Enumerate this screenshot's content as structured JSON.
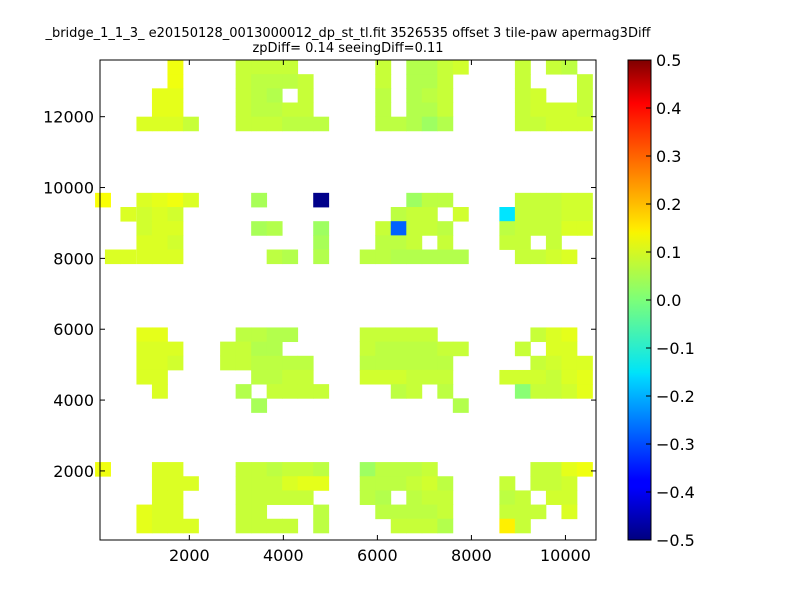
{
  "chart_data": {
    "type": "heatmap",
    "title": "_bridge_1_1_3_ e20150128_0013000012_dp_st_tl.fit 3526535 offset 3 tile-paw apermag3Diff",
    "subtitle": "zpDiff= 0.14 seeingDiff=0.11",
    "xlabel": "",
    "ylabel": "",
    "xlim": [
      100,
      10650
    ],
    "ylim": [
      50,
      13600
    ],
    "xticks": [
      "2000",
      "4000",
      "6000",
      "8000",
      "10000"
    ],
    "yticks": [
      "2000",
      "4000",
      "6000",
      "8000",
      "10000",
      "12000"
    ],
    "cell_size": [
      330,
      400
    ],
    "colorbar": {
      "colormap": "jet",
      "range": [
        -0.5,
        0.5
      ],
      "ticks": [
        "0.5",
        "0.4",
        "0.3",
        "0.2",
        "0.1",
        "0.0",
        "−0.1",
        "−0.2",
        "−0.3",
        "−0.4",
        "−0.5"
      ]
    },
    "cells": [
      [
        1700,
        13400,
        0.11
      ],
      [
        3150,
        13400,
        0.07
      ],
      [
        3480,
        13400,
        0.07
      ],
      [
        3810,
        13400,
        0.07
      ],
      [
        4140,
        13400,
        0.07
      ],
      [
        6120,
        13400,
        0.07
      ],
      [
        6780,
        13400,
        0.05
      ],
      [
        7110,
        13400,
        0.05
      ],
      [
        7440,
        13400,
        0.07
      ],
      [
        7770,
        13400,
        0.08
      ],
      [
        9090,
        13400,
        0.07
      ],
      [
        9750,
        13400,
        0.07
      ],
      [
        10080,
        13400,
        0.06
      ],
      [
        1700,
        13000,
        0.11
      ],
      [
        3150,
        13000,
        0.07
      ],
      [
        3480,
        13000,
        0.06
      ],
      [
        3810,
        13000,
        0.06
      ],
      [
        4140,
        13000,
        0.06
      ],
      [
        4470,
        13000,
        0.07
      ],
      [
        6120,
        13000,
        0.07
      ],
      [
        6780,
        13000,
        0.05
      ],
      [
        7110,
        13000,
        0.05
      ],
      [
        7440,
        13000,
        0.07
      ],
      [
        9090,
        13000,
        0.07
      ],
      [
        10410,
        13000,
        0.07
      ],
      [
        1370,
        12600,
        0.1
      ],
      [
        1700,
        12600,
        0.1
      ],
      [
        3150,
        12600,
        0.07
      ],
      [
        3480,
        12600,
        0.06
      ],
      [
        3810,
        12600,
        0.05
      ],
      [
        4470,
        12600,
        0.07
      ],
      [
        6120,
        12600,
        0.06
      ],
      [
        6780,
        12600,
        0.05
      ],
      [
        7110,
        12600,
        0.06
      ],
      [
        7440,
        12600,
        0.07
      ],
      [
        9090,
        12600,
        0.07
      ],
      [
        9420,
        12600,
        0.08
      ],
      [
        10410,
        12600,
        0.07
      ],
      [
        1370,
        12200,
        0.1
      ],
      [
        1700,
        12200,
        0.1
      ],
      [
        3150,
        12200,
        0.07
      ],
      [
        3480,
        12200,
        0.06
      ],
      [
        3810,
        12200,
        0.06
      ],
      [
        4140,
        12200,
        0.07
      ],
      [
        4470,
        12200,
        0.07
      ],
      [
        6120,
        12200,
        0.06
      ],
      [
        6780,
        12200,
        0.05
      ],
      [
        7110,
        12200,
        0.05
      ],
      [
        7440,
        12200,
        0.07
      ],
      [
        9090,
        12200,
        0.07
      ],
      [
        9420,
        12200,
        0.08
      ],
      [
        9750,
        12200,
        0.08
      ],
      [
        10080,
        12200,
        0.08
      ],
      [
        10410,
        12200,
        0.07
      ],
      [
        1040,
        11800,
        0.09
      ],
      [
        1370,
        11800,
        0.09
      ],
      [
        1700,
        11800,
        0.09
      ],
      [
        2030,
        11800,
        0.07
      ],
      [
        3150,
        11800,
        0.07
      ],
      [
        3480,
        11800,
        0.07
      ],
      [
        3810,
        11800,
        0.07
      ],
      [
        4140,
        11800,
        0.06
      ],
      [
        4470,
        11800,
        0.06
      ],
      [
        4800,
        11800,
        0.06
      ],
      [
        6120,
        11800,
        0.06
      ],
      [
        6450,
        11800,
        0.06
      ],
      [
        6780,
        11800,
        0.05
      ],
      [
        7110,
        11800,
        0.03
      ],
      [
        7440,
        11800,
        0.05
      ],
      [
        9090,
        11800,
        0.07
      ],
      [
        9420,
        11800,
        0.07
      ],
      [
        9750,
        11800,
        0.08
      ],
      [
        10080,
        11800,
        0.08
      ],
      [
        10410,
        11800,
        0.08
      ],
      [
        160,
        9650,
        0.12
      ],
      [
        1040,
        9650,
        0.09
      ],
      [
        1370,
        9650,
        0.1
      ],
      [
        1700,
        9650,
        0.11
      ],
      [
        2030,
        9650,
        0.09
      ],
      [
        3480,
        9650,
        0.04
      ],
      [
        4800,
        9650,
        -0.49
      ],
      [
        6780,
        9650,
        0.03
      ],
      [
        7110,
        9650,
        0.06
      ],
      [
        7440,
        9650,
        0.06
      ],
      [
        9090,
        9650,
        0.07
      ],
      [
        9420,
        9650,
        0.07
      ],
      [
        9750,
        9650,
        0.07
      ],
      [
        10080,
        9650,
        0.08
      ],
      [
        10410,
        9650,
        0.08
      ],
      [
        700,
        9250,
        0.09
      ],
      [
        1040,
        9250,
        0.08
      ],
      [
        1370,
        9250,
        0.09
      ],
      [
        1700,
        9250,
        0.08
      ],
      [
        6450,
        9250,
        0.06
      ],
      [
        6780,
        9250,
        0.07
      ],
      [
        7110,
        9250,
        0.07
      ],
      [
        7770,
        9250,
        0.08
      ],
      [
        8760,
        9250,
        -0.15
      ],
      [
        9090,
        9250,
        0.07
      ],
      [
        9420,
        9250,
        0.07
      ],
      [
        9750,
        9250,
        0.07
      ],
      [
        10080,
        9250,
        0.08
      ],
      [
        10410,
        9250,
        0.08
      ],
      [
        1040,
        8850,
        0.08
      ],
      [
        1370,
        8850,
        0.09
      ],
      [
        1700,
        8850,
        0.09
      ],
      [
        3480,
        8850,
        0.04
      ],
      [
        3810,
        8850,
        0.05
      ],
      [
        4800,
        8850,
        0.03
      ],
      [
        6120,
        8850,
        0.07
      ],
      [
        6450,
        8850,
        -0.28
      ],
      [
        6780,
        8850,
        0.07
      ],
      [
        7110,
        8850,
        0.07
      ],
      [
        7440,
        8850,
        0.06
      ],
      [
        8760,
        8850,
        0.06
      ],
      [
        9090,
        8850,
        0.07
      ],
      [
        9420,
        8850,
        0.07
      ],
      [
        9750,
        8850,
        0.07
      ],
      [
        10080,
        8850,
        0.09
      ],
      [
        10410,
        8850,
        0.09
      ],
      [
        1040,
        8450,
        0.09
      ],
      [
        1370,
        8450,
        0.09
      ],
      [
        1700,
        8450,
        0.08
      ],
      [
        4800,
        8450,
        0.04
      ],
      [
        6120,
        8450,
        0.06
      ],
      [
        6450,
        8450,
        0.06
      ],
      [
        6780,
        8450,
        0.07
      ],
      [
        7440,
        8450,
        0.07
      ],
      [
        8760,
        8450,
        0.07
      ],
      [
        9090,
        8450,
        0.07
      ],
      [
        9750,
        8450,
        0.07
      ],
      [
        370,
        8050,
        0.09
      ],
      [
        700,
        8050,
        0.09
      ],
      [
        1040,
        8050,
        0.09
      ],
      [
        1370,
        8050,
        0.09
      ],
      [
        1700,
        8050,
        0.09
      ],
      [
        3810,
        8050,
        0.06
      ],
      [
        4140,
        8050,
        0.05
      ],
      [
        4800,
        8050,
        0.05
      ],
      [
        5790,
        8050,
        0.06
      ],
      [
        6120,
        8050,
        0.06
      ],
      [
        6450,
        8050,
        0.05
      ],
      [
        6780,
        8050,
        0.05
      ],
      [
        7110,
        8050,
        0.05
      ],
      [
        7440,
        8050,
        0.05
      ],
      [
        7770,
        8050,
        0.05
      ],
      [
        9090,
        8050,
        0.07
      ],
      [
        9420,
        8050,
        0.07
      ],
      [
        9750,
        8050,
        0.08
      ],
      [
        10080,
        8050,
        0.09
      ],
      [
        1040,
        5850,
        0.1
      ],
      [
        1370,
        5850,
        0.1
      ],
      [
        3150,
        5850,
        0.06
      ],
      [
        3480,
        5850,
        0.06
      ],
      [
        3810,
        5850,
        0.05
      ],
      [
        4140,
        5850,
        0.05
      ],
      [
        5790,
        5850,
        0.07
      ],
      [
        6120,
        5850,
        0.07
      ],
      [
        6450,
        5850,
        0.07
      ],
      [
        6780,
        5850,
        0.07
      ],
      [
        7110,
        5850,
        0.07
      ],
      [
        9420,
        5850,
        0.07
      ],
      [
        9750,
        5850,
        0.09
      ],
      [
        10080,
        5850,
        0.1
      ],
      [
        1040,
        5450,
        0.09
      ],
      [
        1370,
        5450,
        0.09
      ],
      [
        1700,
        5450,
        0.09
      ],
      [
        2820,
        5450,
        0.07
      ],
      [
        3150,
        5450,
        0.07
      ],
      [
        3480,
        5450,
        0.05
      ],
      [
        3810,
        5450,
        0.05
      ],
      [
        5790,
        5450,
        0.07
      ],
      [
        6120,
        5450,
        0.06
      ],
      [
        6450,
        5450,
        0.06
      ],
      [
        6780,
        5450,
        0.06
      ],
      [
        7110,
        5450,
        0.06
      ],
      [
        7440,
        5450,
        0.07
      ],
      [
        7770,
        5450,
        0.07
      ],
      [
        9090,
        5450,
        0.07
      ],
      [
        9750,
        5450,
        0.09
      ],
      [
        10080,
        5450,
        0.09
      ],
      [
        1040,
        5050,
        0.09
      ],
      [
        1370,
        5050,
        0.09
      ],
      [
        1700,
        5050,
        0.08
      ],
      [
        2820,
        5050,
        0.07
      ],
      [
        3150,
        5050,
        0.07
      ],
      [
        3480,
        5050,
        0.06
      ],
      [
        3810,
        5050,
        0.06
      ],
      [
        4140,
        5050,
        0.06
      ],
      [
        4470,
        5050,
        0.06
      ],
      [
        5790,
        5050,
        0.06
      ],
      [
        6120,
        5050,
        0.06
      ],
      [
        6450,
        5050,
        0.06
      ],
      [
        6780,
        5050,
        0.06
      ],
      [
        7110,
        5050,
        0.06
      ],
      [
        7440,
        5050,
        0.06
      ],
      [
        9420,
        5050,
        0.07
      ],
      [
        9750,
        5050,
        0.08
      ],
      [
        10080,
        5050,
        0.09
      ],
      [
        10410,
        5050,
        0.09
      ],
      [
        1040,
        4650,
        0.09
      ],
      [
        1370,
        4650,
        0.09
      ],
      [
        3480,
        4650,
        0.06
      ],
      [
        3810,
        4650,
        0.06
      ],
      [
        4140,
        4650,
        0.07
      ],
      [
        4470,
        4650,
        0.07
      ],
      [
        5790,
        4650,
        0.08
      ],
      [
        6120,
        4650,
        0.08
      ],
      [
        6450,
        4650,
        0.08
      ],
      [
        6780,
        4650,
        0.07
      ],
      [
        7110,
        4650,
        0.07
      ],
      [
        7440,
        4650,
        0.07
      ],
      [
        8760,
        4650,
        0.08
      ],
      [
        9090,
        4650,
        0.08
      ],
      [
        9420,
        4650,
        0.08
      ],
      [
        9750,
        4650,
        0.07
      ],
      [
        10080,
        4650,
        0.09
      ],
      [
        10410,
        4650,
        0.1
      ],
      [
        1370,
        4250,
        0.09
      ],
      [
        3150,
        4250,
        0.05
      ],
      [
        3810,
        4250,
        0.07
      ],
      [
        4140,
        4250,
        0.07
      ],
      [
        4470,
        4250,
        0.07
      ],
      [
        4800,
        4250,
        0.07
      ],
      [
        6450,
        4250,
        0.06
      ],
      [
        6780,
        4250,
        0.07
      ],
      [
        7440,
        4250,
        0.06
      ],
      [
        9090,
        4250,
        0.01
      ],
      [
        9420,
        4250,
        0.07
      ],
      [
        9750,
        4250,
        0.07
      ],
      [
        10080,
        4250,
        0.08
      ],
      [
        10410,
        4250,
        0.1
      ],
      [
        3480,
        3850,
        0.04
      ],
      [
        7770,
        3850,
        0.05
      ],
      [
        160,
        2050,
        0.11
      ],
      [
        1370,
        2050,
        0.09
      ],
      [
        1700,
        2050,
        0.09
      ],
      [
        3150,
        2050,
        0.07
      ],
      [
        3480,
        2050,
        0.07
      ],
      [
        3810,
        2050,
        0.06
      ],
      [
        4140,
        2050,
        0.07
      ],
      [
        4470,
        2050,
        0.07
      ],
      [
        4800,
        2050,
        0.06
      ],
      [
        5790,
        2050,
        0.03
      ],
      [
        6120,
        2050,
        0.06
      ],
      [
        6450,
        2050,
        0.06
      ],
      [
        6780,
        2050,
        0.06
      ],
      [
        7110,
        2050,
        0.07
      ],
      [
        9420,
        2050,
        0.07
      ],
      [
        9750,
        2050,
        0.07
      ],
      [
        10080,
        2050,
        0.1
      ],
      [
        10410,
        2050,
        0.11
      ],
      [
        1370,
        1650,
        0.09
      ],
      [
        1700,
        1650,
        0.09
      ],
      [
        2030,
        1650,
        0.09
      ],
      [
        3150,
        1650,
        0.07
      ],
      [
        3480,
        1650,
        0.07
      ],
      [
        3810,
        1650,
        0.07
      ],
      [
        4140,
        1650,
        0.09
      ],
      [
        4470,
        1650,
        0.1
      ],
      [
        4800,
        1650,
        0.1
      ],
      [
        5790,
        1650,
        0.06
      ],
      [
        6120,
        1650,
        0.06
      ],
      [
        6450,
        1650,
        0.06
      ],
      [
        6780,
        1650,
        0.07
      ],
      [
        7110,
        1650,
        0.08
      ],
      [
        7440,
        1650,
        0.06
      ],
      [
        8760,
        1650,
        0.07
      ],
      [
        9420,
        1650,
        0.07
      ],
      [
        9750,
        1650,
        0.07
      ],
      [
        10080,
        1650,
        0.08
      ],
      [
        1370,
        1250,
        0.09
      ],
      [
        1700,
        1250,
        0.09
      ],
      [
        3150,
        1250,
        0.07
      ],
      [
        3480,
        1250,
        0.07
      ],
      [
        3810,
        1250,
        0.07
      ],
      [
        4140,
        1250,
        0.07
      ],
      [
        4470,
        1250,
        0.07
      ],
      [
        5790,
        1250,
        0.06
      ],
      [
        6120,
        1250,
        0.05
      ],
      [
        6780,
        1250,
        0.06
      ],
      [
        7110,
        1250,
        0.07
      ],
      [
        7440,
        1250,
        0.07
      ],
      [
        8760,
        1250,
        0.06
      ],
      [
        9090,
        1250,
        0.07
      ],
      [
        9750,
        1250,
        0.08
      ],
      [
        10080,
        1250,
        0.08
      ],
      [
        1040,
        850,
        0.1
      ],
      [
        1370,
        850,
        0.09
      ],
      [
        1700,
        850,
        0.09
      ],
      [
        3150,
        850,
        0.07
      ],
      [
        3480,
        850,
        0.07
      ],
      [
        4800,
        850,
        0.06
      ],
      [
        6120,
        850,
        0.06
      ],
      [
        6450,
        850,
        0.06
      ],
      [
        6780,
        850,
        0.06
      ],
      [
        7110,
        850,
        0.06
      ],
      [
        7440,
        850,
        0.07
      ],
      [
        8760,
        850,
        0.07
      ],
      [
        9090,
        850,
        0.07
      ],
      [
        9420,
        850,
        0.07
      ],
      [
        10080,
        850,
        0.09
      ],
      [
        1040,
        450,
        0.1
      ],
      [
        1370,
        450,
        0.09
      ],
      [
        1700,
        450,
        0.09
      ],
      [
        2030,
        450,
        0.09
      ],
      [
        3150,
        450,
        0.07
      ],
      [
        3480,
        450,
        0.07
      ],
      [
        3810,
        450,
        0.07
      ],
      [
        4140,
        450,
        0.07
      ],
      [
        4800,
        450,
        0.06
      ],
      [
        6450,
        450,
        0.07
      ],
      [
        6780,
        450,
        0.07
      ],
      [
        7110,
        450,
        0.07
      ],
      [
        7440,
        450,
        0.05
      ],
      [
        8760,
        450,
        0.14
      ],
      [
        9090,
        450,
        0.07
      ]
    ]
  }
}
